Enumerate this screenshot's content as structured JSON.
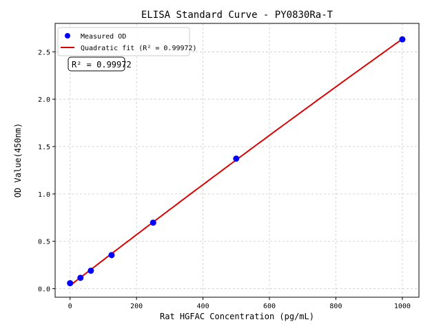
{
  "chart_data": {
    "type": "scatter",
    "title": "ELISA Standard Curve - PY0830Ra-T",
    "xlabel": "Rat HGFAC Concentration (pg/mL)",
    "ylabel": "OD Value(450nm)",
    "xlim": [
      -45,
      1050
    ],
    "ylim": [
      -0.09,
      2.8
    ],
    "xticks": [
      0,
      200,
      400,
      600,
      800,
      1000
    ],
    "xtick_labels": [
      "0",
      "200",
      "400",
      "600",
      "800",
      "1000"
    ],
    "yticks": [
      0.0,
      0.5,
      1.0,
      1.5,
      2.0,
      2.5
    ],
    "ytick_labels": [
      "0.0",
      "0.5",
      "1.0",
      "1.5",
      "2.0",
      "2.5"
    ],
    "grid": true,
    "legend_position": "top-left",
    "series": [
      {
        "name": "Measured OD",
        "kind": "scatter",
        "color": "#0000ff",
        "x": [
          0,
          31.25,
          62.5,
          125,
          250,
          500,
          1000
        ],
        "y": [
          0.058,
          0.115,
          0.19,
          0.355,
          0.697,
          1.373,
          2.632
        ]
      },
      {
        "name": "Quadratic fit (R² = 0.99972)",
        "kind": "line",
        "color": "#dd0000",
        "fit": "quadratic"
      }
    ],
    "annotation": "R² = 0.99972"
  }
}
